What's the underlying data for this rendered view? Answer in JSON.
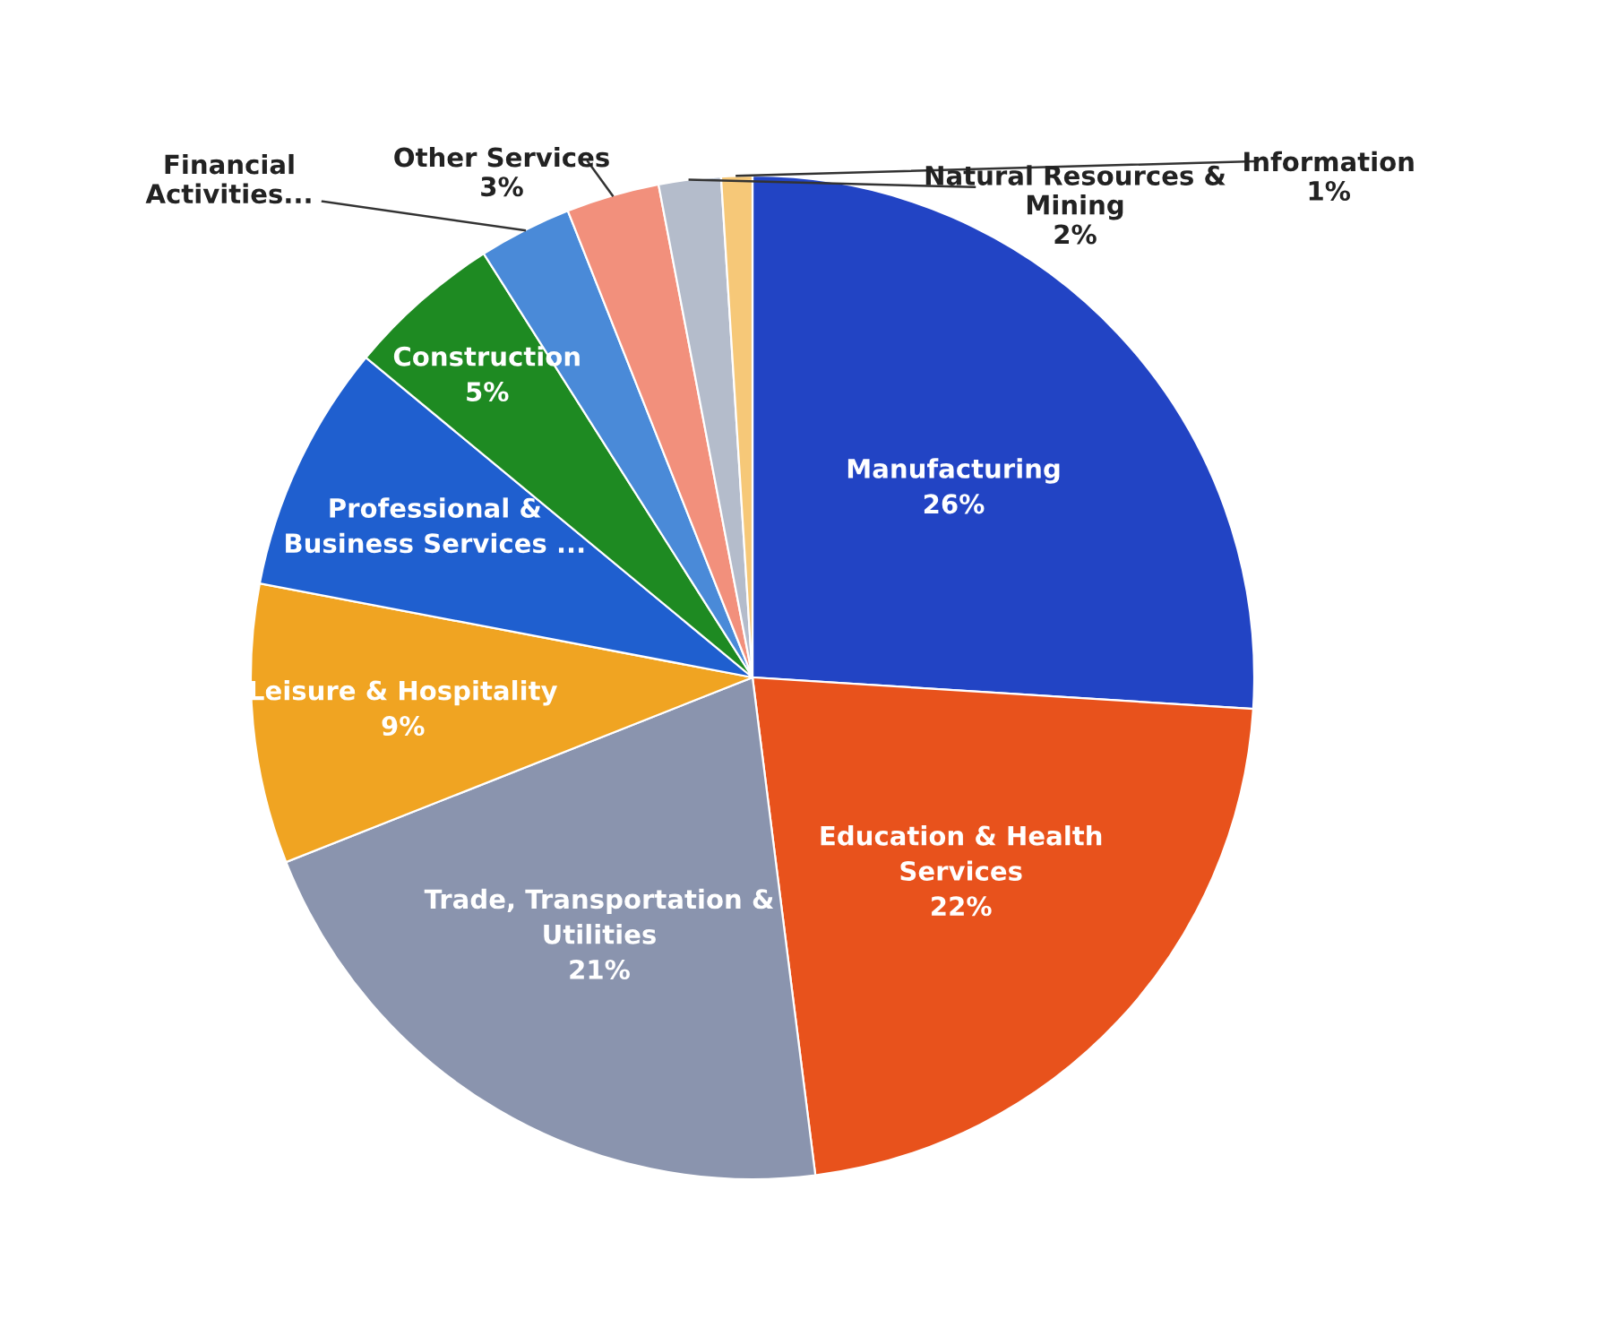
{
  "chart_data": {
    "type": "pie",
    "categories": [
      "Manufacturing",
      "Education & Health\nServices",
      "Trade, Transportation &\nUtilities",
      "Leisure & Hospitality",
      "Professional &\nBusiness Services ...",
      "Construction",
      "Financial\nActivities...",
      "Other Services",
      "Natural Resources &\nMining",
      "Information"
    ],
    "values": [
      26,
      22,
      21,
      9,
      8,
      5,
      3,
      3,
      2,
      1
    ],
    "value_labels": [
      "26%",
      "22%",
      "21%",
      "9%",
      null,
      "5%",
      null,
      "3%",
      "2%",
      "1%"
    ],
    "colors": [
      "#2244c4",
      "#e8521c",
      "#8a94ae",
      "#f0a422",
      "#1f5fcf",
      "#1e8a22",
      "#4a8ad8",
      "#f2907c",
      "#b4bccb",
      "#f6c878"
    ]
  }
}
